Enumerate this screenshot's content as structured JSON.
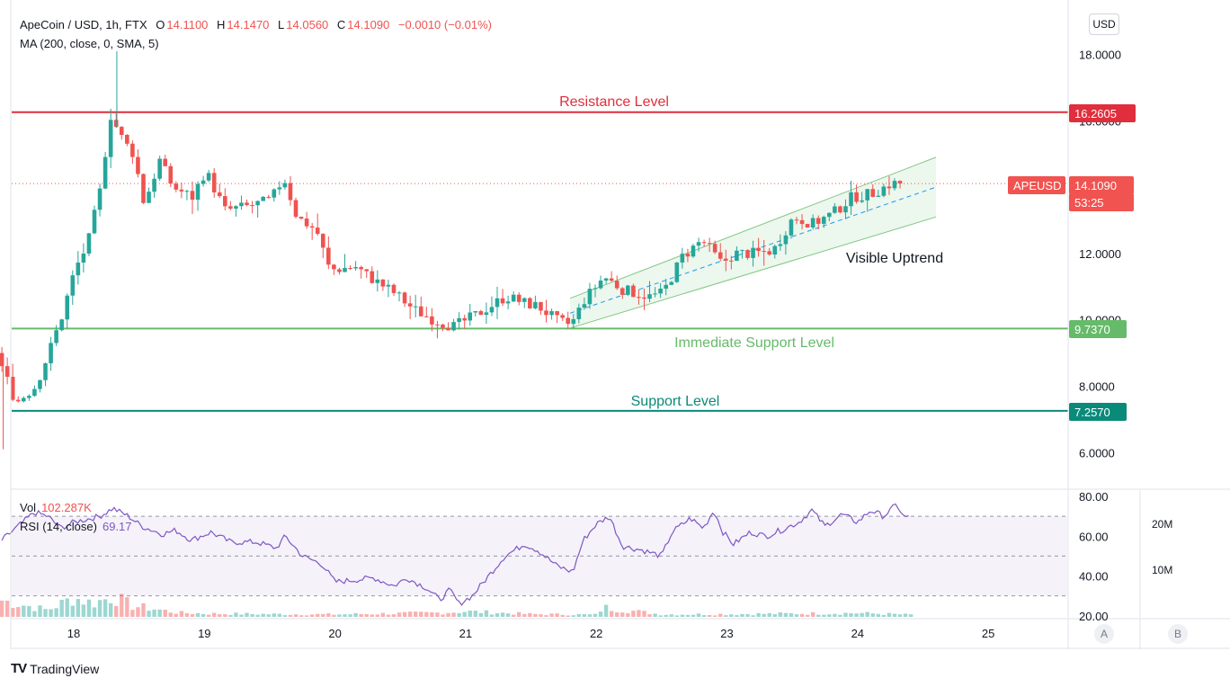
{
  "legend": {
    "symbol": "ApeCoin / USD, 1h, FTX",
    "o_key": "O",
    "o_val": "14.1100",
    "h_key": "H",
    "h_val": "14.1470",
    "l_key": "L",
    "l_val": "14.0560",
    "c_key": "C",
    "c_val": "14.1090",
    "change": "−0.0010 (−0.01%)",
    "ma": "MA (200, close, 0, SMA, 5)"
  },
  "currency_button": "USD",
  "volume_legend": {
    "label": "Vol",
    "value": "102.287K"
  },
  "rsi_legend": {
    "label": "RSI (14, close)",
    "value": "69.17"
  },
  "price_tags": {
    "resistance": "16.2605",
    "symbol": "APEUSD",
    "last_price": "14.1090",
    "countdown": "53:25",
    "immediate_support": "9.7370",
    "support": "7.2570"
  },
  "annotations": {
    "resistance": "Resistance Level",
    "immediate_support": "Immediate Support Level",
    "support": "Support Level",
    "uptrend": "Visible Uptrend"
  },
  "volume_axis": [
    "20M",
    "10M"
  ],
  "scale_buttons": [
    "A",
    "B"
  ],
  "brand": "TradingView",
  "colors": {
    "up": "#26a69a",
    "down": "#ef5350",
    "resistance": "#e02e3c",
    "immediate_support": "#66bb6a",
    "support": "#0a8a79",
    "rsi": "#7e57c2"
  },
  "chart_data": [
    {
      "type": "candlestick",
      "title": "ApeCoin / USD, 1h, FTX",
      "y_ticks": [
        "18.0000",
        "16.0000",
        "12.0000",
        "10.0000",
        "8.0000",
        "6.0000"
      ],
      "x_ticks": [
        "18",
        "19",
        "20",
        "21",
        "22",
        "23",
        "24",
        "25"
      ],
      "ylim": [
        5.0,
        19.0
      ],
      "horizontal_levels": [
        {
          "name": "Resistance Level",
          "value": 16.2605
        },
        {
          "name": "Immediate Support Level",
          "value": 9.737
        },
        {
          "name": "Support Level",
          "value": 7.257
        }
      ],
      "last_price": 14.109,
      "channel": {
        "label": "Visible Uptrend",
        "start_day": 21.8,
        "end_day": 24.6,
        "upper": [
          10.65,
          14.9
        ],
        "middle": [
          10.2,
          14.0
        ],
        "lower": [
          9.75,
          13.1
        ]
      },
      "series": [
        {
          "name": "",
          "anchors": [
            [
              17.45,
              9.0
            ],
            [
              17.6,
              7.5
            ],
            [
              17.75,
              8.0
            ],
            [
              17.85,
              9.0
            ],
            [
              17.95,
              10.1
            ],
            [
              18.05,
              11.5
            ],
            [
              18.15,
              12.3
            ],
            [
              18.25,
              14.0
            ],
            [
              18.32,
              16.2
            ],
            [
              18.42,
              15.4
            ],
            [
              18.5,
              15.0
            ],
            [
              18.58,
              13.5
            ],
            [
              18.7,
              14.8
            ],
            [
              18.8,
              14.0
            ],
            [
              18.95,
              13.7
            ],
            [
              19.05,
              14.5
            ],
            [
              19.2,
              13.3
            ],
            [
              19.35,
              13.4
            ],
            [
              19.55,
              13.6
            ],
            [
              19.65,
              14.3
            ],
            [
              19.75,
              13.1
            ],
            [
              19.9,
              12.7
            ],
            [
              20.0,
              11.5
            ],
            [
              20.2,
              11.6
            ],
            [
              20.3,
              11.3
            ],
            [
              20.5,
              10.8
            ],
            [
              20.65,
              10.3
            ],
            [
              20.8,
              10.0
            ],
            [
              20.95,
              9.8
            ],
            [
              21.1,
              10.1
            ],
            [
              21.35,
              10.7
            ],
            [
              21.5,
              10.5
            ],
            [
              21.6,
              10.4
            ],
            [
              21.75,
              9.95
            ],
            [
              21.85,
              9.85
            ],
            [
              21.95,
              10.6
            ],
            [
              22.1,
              11.3
            ],
            [
              22.25,
              10.9
            ],
            [
              22.45,
              10.7
            ],
            [
              22.55,
              10.8
            ],
            [
              22.7,
              11.9
            ],
            [
              22.85,
              12.4
            ],
            [
              23.0,
              11.7
            ],
            [
              23.1,
              12.0
            ],
            [
              23.25,
              12.0
            ],
            [
              23.4,
              12.1
            ],
            [
              23.55,
              13.1
            ],
            [
              23.7,
              12.9
            ],
            [
              23.85,
              13.2
            ],
            [
              24.0,
              13.7
            ],
            [
              24.15,
              13.8
            ],
            [
              24.3,
              14.109
            ]
          ]
        }
      ]
    },
    {
      "type": "line",
      "title": "RSI (14, close)",
      "y_ticks": [
        "80.00",
        "60.00",
        "40.00",
        "20.00"
      ],
      "ylim": [
        20,
        80
      ],
      "bands": [
        70,
        50,
        30
      ],
      "series": [
        {
          "name": "",
          "anchors": [
            [
              17.45,
              58
            ],
            [
              17.7,
              72
            ],
            [
              17.8,
              70
            ],
            [
              17.9,
              64
            ],
            [
              18.0,
              67
            ],
            [
              18.2,
              70
            ],
            [
              18.3,
              74
            ],
            [
              18.42,
              70
            ],
            [
              18.52,
              65
            ],
            [
              18.68,
              61
            ],
            [
              18.78,
              63
            ],
            [
              18.9,
              58
            ],
            [
              19.05,
              62
            ],
            [
              19.2,
              57
            ],
            [
              19.4,
              57
            ],
            [
              19.55,
              54
            ],
            [
              19.62,
              60
            ],
            [
              19.75,
              50
            ],
            [
              19.9,
              46
            ],
            [
              20.0,
              37
            ],
            [
              20.15,
              38
            ],
            [
              20.3,
              39
            ],
            [
              20.45,
              35
            ],
            [
              20.55,
              39
            ],
            [
              20.7,
              34
            ],
            [
              20.8,
              28
            ],
            [
              20.88,
              33
            ],
            [
              20.95,
              26
            ],
            [
              21.05,
              30
            ],
            [
              21.2,
              42
            ],
            [
              21.3,
              50
            ],
            [
              21.45,
              56
            ],
            [
              21.55,
              53
            ],
            [
              21.7,
              45
            ],
            [
              21.82,
              42
            ],
            [
              21.9,
              58
            ],
            [
              22.0,
              66
            ],
            [
              22.1,
              70
            ],
            [
              22.2,
              55
            ],
            [
              22.35,
              53
            ],
            [
              22.5,
              50
            ],
            [
              22.58,
              62
            ],
            [
              22.72,
              69
            ],
            [
              22.82,
              64
            ],
            [
              22.9,
              73
            ],
            [
              22.97,
              62
            ],
            [
              23.05,
              56
            ],
            [
              23.18,
              62
            ],
            [
              23.3,
              60
            ],
            [
              23.45,
              64
            ],
            [
              23.55,
              67
            ],
            [
              23.65,
              73
            ],
            [
              23.75,
              65
            ],
            [
              23.88,
              71
            ],
            [
              24.0,
              67
            ],
            [
              24.1,
              73
            ],
            [
              24.2,
              70
            ],
            [
              24.3,
              76
            ],
            [
              24.35,
              70
            ],
            [
              24.4,
              69.17
            ]
          ]
        }
      ]
    },
    {
      "type": "bar",
      "title": "Vol",
      "y_ticks": [
        "20M",
        "10M"
      ],
      "last_value": "102.287K",
      "series": [
        {
          "name": "",
          "anchors": [
            [
              17.45,
              6
            ],
            [
              17.8,
              2.5
            ],
            [
              18.0,
              7
            ],
            [
              18.15,
              5
            ],
            [
              18.3,
              7.5
            ],
            [
              18.45,
              4
            ],
            [
              18.6,
              3
            ],
            [
              18.8,
              1.5
            ],
            [
              19.0,
              1.2
            ],
            [
              19.5,
              1.0
            ],
            [
              20.0,
              0.9
            ],
            [
              20.8,
              1.5
            ],
            [
              21.0,
              2.0
            ],
            [
              21.5,
              1.0
            ],
            [
              22.0,
              0.8
            ],
            [
              22.05,
              3.5
            ],
            [
              22.5,
              0.9
            ],
            [
              23.0,
              1.0
            ],
            [
              23.5,
              1.2
            ],
            [
              24.0,
              1.4
            ],
            [
              24.4,
              0.8
            ]
          ]
        }
      ]
    }
  ]
}
